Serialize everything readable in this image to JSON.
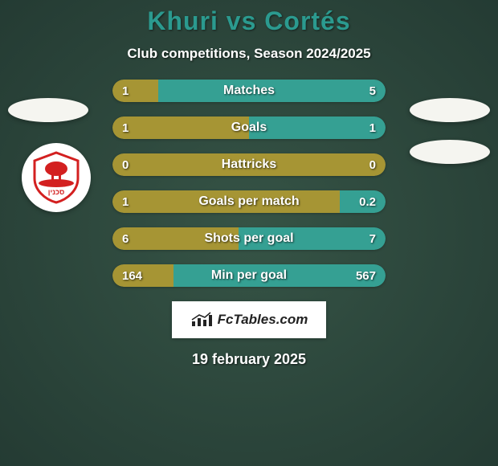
{
  "background": {
    "color": "#2d4a3e",
    "gradient_stops": [
      "#365446",
      "#243b33"
    ]
  },
  "title": "Khuri vs Cortés",
  "title_color": "#2b9a8f",
  "subtitle": "Club competitions, Season 2024/2025",
  "subtitle_color": "#ffffff",
  "colors": {
    "left": "#a69534",
    "right": "#35a093",
    "text": "#ffffff",
    "badge_bg": "#f5f5f0"
  },
  "fontsize": {
    "title": 32,
    "subtitle": 17,
    "bar_label": 16,
    "bar_value": 15,
    "date": 18
  },
  "bars": [
    {
      "label": "Matches",
      "left_value": "1",
      "right_value": "5",
      "left_pct": 16.7,
      "right_pct": 83.3
    },
    {
      "label": "Goals",
      "left_value": "1",
      "right_value": "1",
      "left_pct": 50.0,
      "right_pct": 50.0
    },
    {
      "label": "Hattricks",
      "left_value": "0",
      "right_value": "0",
      "left_pct": 100.0,
      "right_pct": 0.0
    },
    {
      "label": "Goals per match",
      "left_value": "1",
      "right_value": "0.2",
      "left_pct": 83.3,
      "right_pct": 16.7
    },
    {
      "label": "Shots per goal",
      "left_value": "6",
      "right_value": "7",
      "left_pct": 46.2,
      "right_pct": 53.8
    },
    {
      "label": "Min per goal",
      "left_value": "164",
      "right_value": "567",
      "left_pct": 22.4,
      "right_pct": 77.6
    }
  ],
  "bar_style": {
    "height": 28,
    "border_radius": 14,
    "row_gap": 18,
    "wrapper_width": 340
  },
  "watermark": {
    "text": "FcTables.com",
    "bg": "#ffffff",
    "text_color": "#222222"
  },
  "date_line": "19 february 2025",
  "team_logo": {
    "primary": "#d32020",
    "accent": "#ffffff",
    "text": "סכנין"
  }
}
